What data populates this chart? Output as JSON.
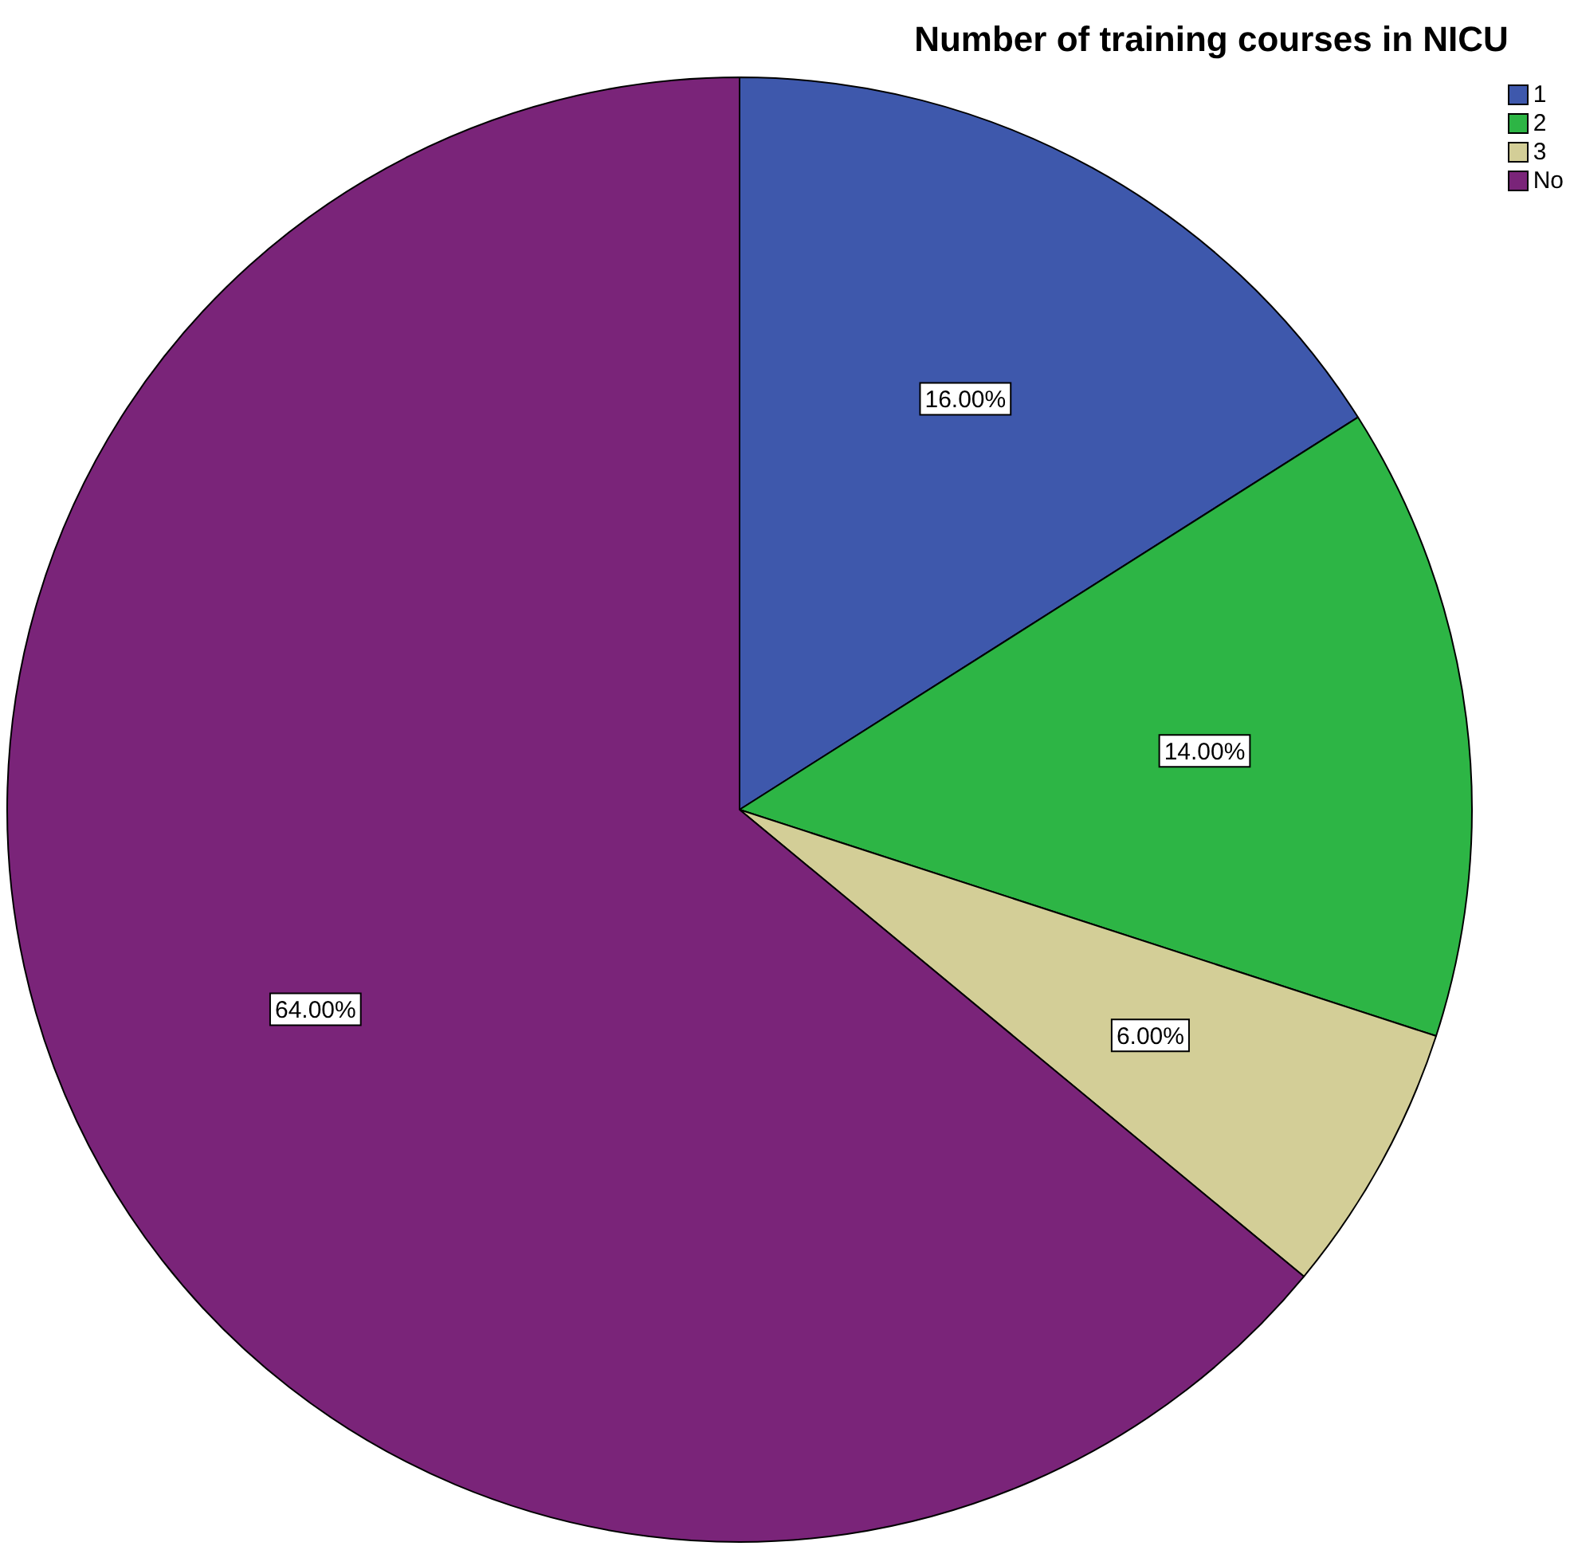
{
  "chart_data": {
    "type": "pie",
    "title": "Number of training courses in NICU",
    "categories": [
      "1",
      "2",
      "3",
      "No"
    ],
    "values": [
      16,
      14,
      6,
      64
    ],
    "colors": [
      "#3e58ac",
      "#2db545",
      "#d3ce97",
      "#7a2479"
    ],
    "value_labels": [
      "16.00%",
      "14.00%",
      "6.00%",
      "64.00%"
    ],
    "legend": "top right"
  }
}
